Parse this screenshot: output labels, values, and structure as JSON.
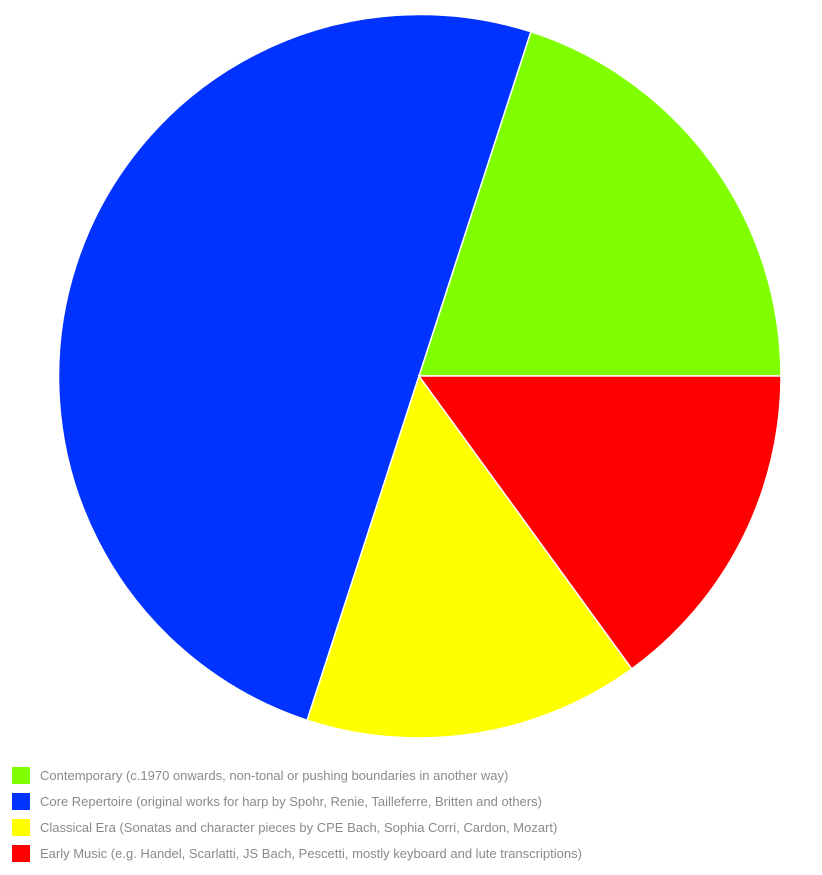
{
  "chart_data": {
    "type": "pie",
    "title": "",
    "start_angle_deg": 0,
    "direction": "counterclockwise",
    "legend_position": "bottom",
    "slices": [
      {
        "label": "Contemporary (c.1970 onwards, non-tonal or pushing boundaries in another way)",
        "value": 20,
        "color": "#80ff00"
      },
      {
        "label": "Core Repertoire (original works for harp by Spohr, Renie, Tailleferre, Britten and others)",
        "value": 50,
        "color": "#0033ff"
      },
      {
        "label": "Classical Era (Sonatas and character pieces by CPE Bach, Sophia Corri, Cardon, Mozart)",
        "value": 15,
        "color": "#ffff00"
      },
      {
        "label": "Early Music (e.g. Handel, Scarlatti, JS Bach, Pescetti, mostly keyboard and lute transcriptions)",
        "value": 15,
        "color": "#ff0000"
      }
    ]
  }
}
